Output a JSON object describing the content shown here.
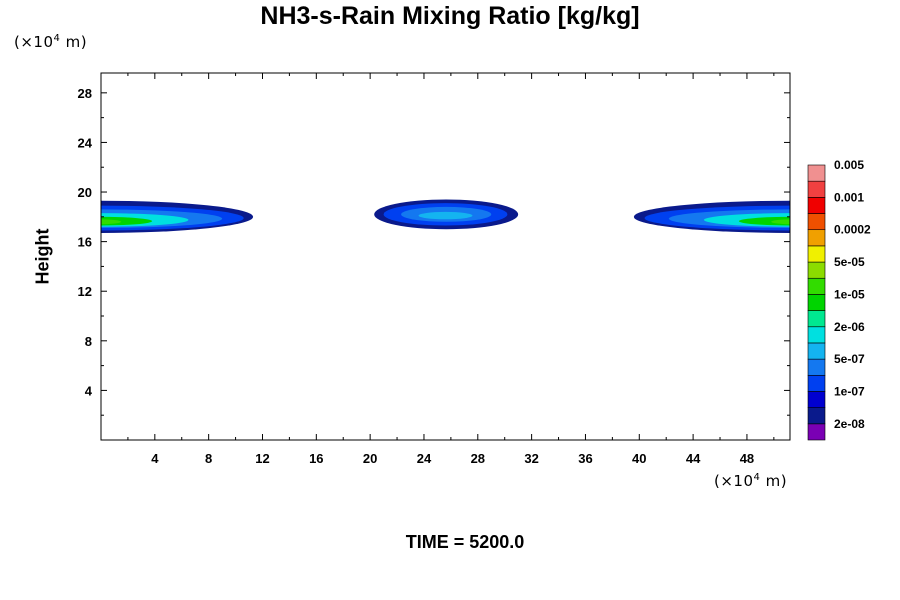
{
  "chart_data": {
    "type": "heatmap",
    "title": "NH3-s-Rain Mixing Ratio [kg/kg]",
    "ylabel": "Height",
    "y_unit": {
      "base": "(×10",
      "exp": "4",
      "unit": " m)"
    },
    "x_unit": {
      "base": "(×10",
      "exp": "4",
      "unit": " m)"
    },
    "footer": "TIME = 5200.0",
    "xlim": [
      0,
      51.2
    ],
    "ylim": [
      0,
      29.6
    ],
    "xticks": [
      4,
      8,
      12,
      16,
      20,
      24,
      28,
      32,
      36,
      40,
      44,
      48
    ],
    "yticks": [
      4,
      8,
      12,
      16,
      20,
      24,
      28
    ],
    "colorbar": {
      "colors": [
        "#7a00b4",
        "#0a1a8c",
        "#0000d0",
        "#0040f0",
        "#1478f0",
        "#14b4f0",
        "#00e0e0",
        "#00e890",
        "#00d400",
        "#32dc00",
        "#8cdc00",
        "#f0f000",
        "#f0a000",
        "#f05000",
        "#f00000",
        "#f04040",
        "#f09090"
      ],
      "labels": [
        "2e-08",
        "1e-07",
        "5e-07",
        "2e-06",
        "1e-05",
        "5e-05",
        "0.0002",
        "0.001",
        "0.005"
      ]
    },
    "regions": [
      {
        "name": "left-plume",
        "levels": [
          {
            "x": [
              0.0,
              11.3
            ],
            "y": [
              16.7,
              19.3
            ],
            "c": 1
          },
          {
            "x": [
              0.0,
              10.6
            ],
            "y": [
              16.9,
              18.9
            ],
            "c": 3
          },
          {
            "x": [
              0.0,
              9.0
            ],
            "y": [
              17.1,
              18.6
            ],
            "c": 4
          },
          {
            "x": [
              0.0,
              6.5
            ],
            "y": [
              17.2,
              18.3
            ],
            "c": 6
          },
          {
            "x": [
              0.0,
              3.8
            ],
            "y": [
              17.3,
              18.0
            ],
            "c": 8
          },
          {
            "x": [
              0.0,
              1.5
            ],
            "y": [
              17.4,
              17.8
            ],
            "c": 9
          }
        ]
      },
      {
        "name": "right-plume",
        "levels": [
          {
            "x": [
              39.6,
              51.2
            ],
            "y": [
              16.7,
              19.3
            ],
            "c": 1
          },
          {
            "x": [
              40.4,
              51.2
            ],
            "y": [
              16.9,
              18.9
            ],
            "c": 3
          },
          {
            "x": [
              42.2,
              51.2
            ],
            "y": [
              17.1,
              18.6
            ],
            "c": 4
          },
          {
            "x": [
              44.8,
              51.2
            ],
            "y": [
              17.2,
              18.3
            ],
            "c": 6
          },
          {
            "x": [
              47.4,
              51.2
            ],
            "y": [
              17.3,
              18.0
            ],
            "c": 8
          },
          {
            "x": [
              49.8,
              51.2
            ],
            "y": [
              17.4,
              17.8
            ],
            "c": 9
          }
        ]
      },
      {
        "name": "center-cell",
        "levels": [
          {
            "x": [
              20.3,
              31.0
            ],
            "y": [
              17.0,
              19.4
            ],
            "c": 1
          },
          {
            "x": [
              21.0,
              30.2
            ],
            "y": [
              17.3,
              19.1
            ],
            "c": 3
          },
          {
            "x": [
              22.3,
              29.0
            ],
            "y": [
              17.6,
              18.8
            ],
            "c": 4
          },
          {
            "x": [
              23.6,
              27.6
            ],
            "y": [
              17.8,
              18.4
            ],
            "c": 5
          }
        ]
      }
    ]
  }
}
